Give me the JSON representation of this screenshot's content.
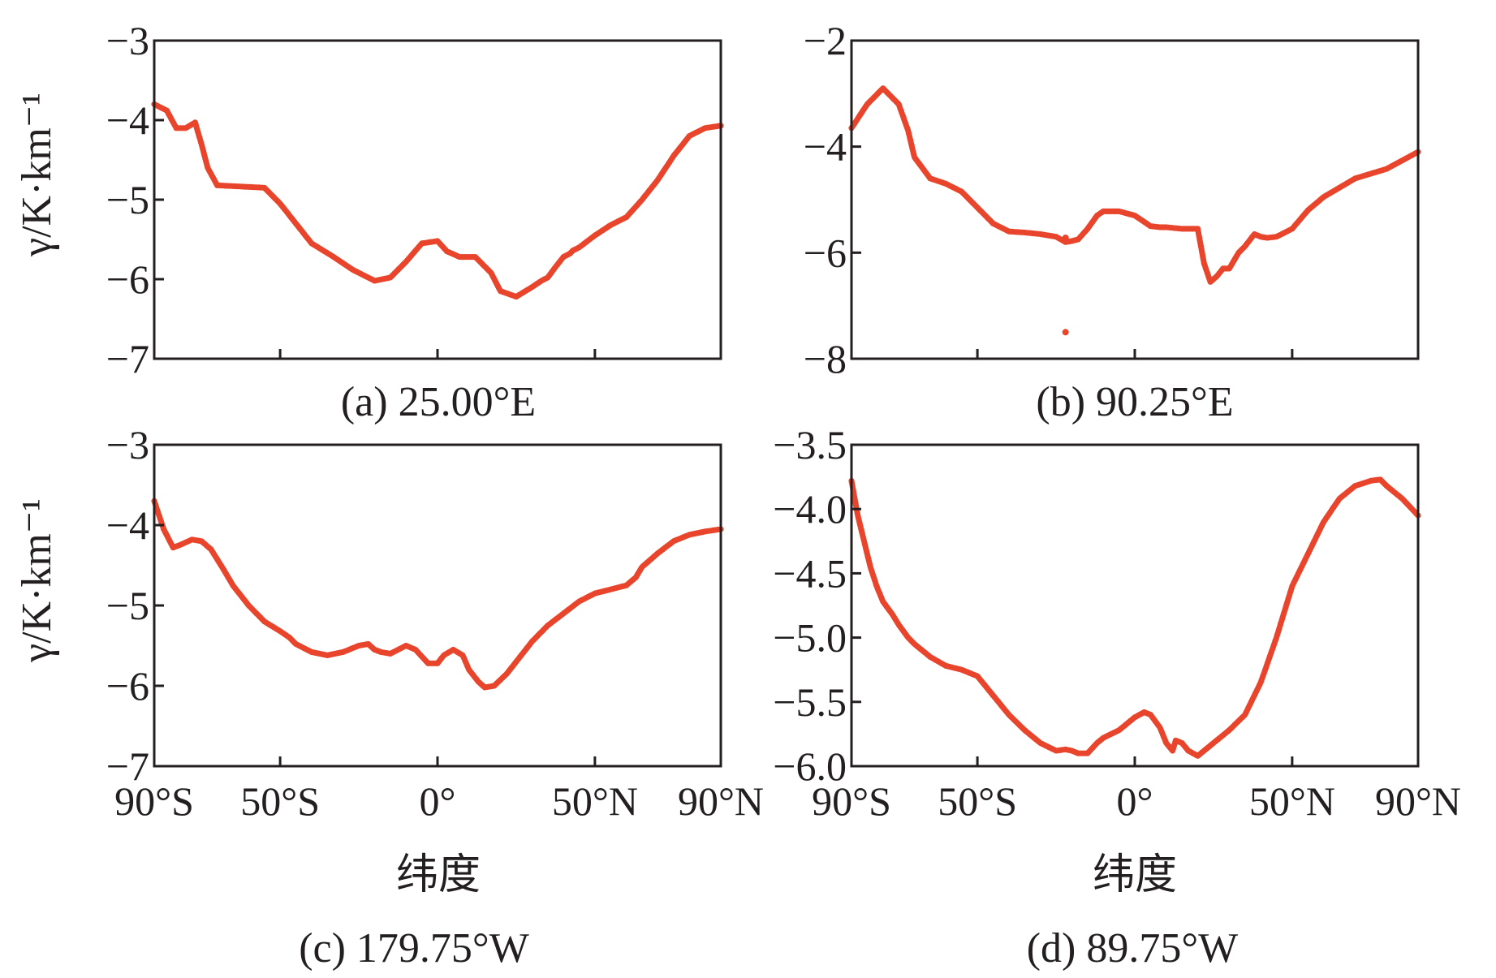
{
  "figure": {
    "ylabel": "γ/K·km⁻¹",
    "xlabel": "纬度",
    "x_tick_labels": [
      "90°S",
      "50°S",
      "0°",
      "50°N",
      "90°N"
    ]
  },
  "colors": {
    "series": "#e8452c",
    "axes": "#231f20"
  },
  "chart_data": [
    {
      "type": "scatter",
      "title": "(a) 25.00°E",
      "xlabel": "纬度",
      "ylabel": "γ/K·km⁻¹",
      "xlim": [
        -90,
        90
      ],
      "ylim": [
        -7,
        -3
      ],
      "y_ticks": [
        -3,
        -4,
        -5,
        -6,
        -7
      ],
      "y_tick_labels": [
        "−3",
        "−4",
        "−5",
        "−6",
        "−7"
      ],
      "x_ticks": [
        -90,
        -50,
        0,
        50,
        90
      ],
      "show_x_tick_labels": false,
      "x": [
        -90,
        -86,
        -83,
        -80,
        -77,
        -75,
        -73,
        -70,
        -65,
        -55,
        -50,
        -45,
        -40,
        -33,
        -27,
        -20,
        -15,
        -10,
        -5,
        0,
        3,
        7,
        12,
        17,
        20,
        25,
        30,
        33,
        35,
        38,
        40,
        42,
        43,
        45,
        50,
        55,
        60,
        65,
        70,
        75,
        80,
        85,
        90
      ],
      "y": [
        -3.8,
        -3.88,
        -4.1,
        -4.1,
        -4.03,
        -4.3,
        -4.6,
        -4.82,
        -4.83,
        -4.85,
        -5.05,
        -5.3,
        -5.55,
        -5.72,
        -5.88,
        -6.02,
        -5.98,
        -5.78,
        -5.55,
        -5.52,
        -5.65,
        -5.72,
        -5.72,
        -5.92,
        -6.15,
        -6.22,
        -6.1,
        -6.02,
        -5.98,
        -5.82,
        -5.72,
        -5.68,
        -5.64,
        -5.6,
        -5.45,
        -5.32,
        -5.22,
        -5.0,
        -4.75,
        -4.45,
        -4.2,
        -4.1,
        -4.07
      ]
    },
    {
      "type": "scatter",
      "title": "(b) 90.25°E",
      "xlabel": "纬度",
      "ylabel": "γ/K·km⁻¹",
      "xlim": [
        -90,
        90
      ],
      "ylim": [
        -8,
        -2
      ],
      "y_ticks": [
        -2,
        -4,
        -6,
        -8
      ],
      "y_tick_labels": [
        "−2",
        "−4",
        "−6",
        "−8"
      ],
      "x_ticks": [
        -90,
        -50,
        0,
        50,
        90
      ],
      "show_x_tick_labels": false,
      "x": [
        -90,
        -85,
        -80,
        -75,
        -72,
        -70,
        -65,
        -60,
        -55,
        -50,
        -45,
        -40,
        -35,
        -30,
        -25,
        -22,
        -20,
        -18,
        -15,
        -12,
        -10,
        -7,
        -5,
        0,
        5,
        8,
        10,
        15,
        20,
        22,
        24,
        26,
        28,
        30,
        33,
        35,
        38,
        40,
        42,
        45,
        50,
        55,
        60,
        70,
        80,
        90
      ],
      "y": [
        -3.65,
        -3.2,
        -2.9,
        -3.2,
        -3.7,
        -4.2,
        -4.6,
        -4.7,
        -4.85,
        -5.15,
        -5.45,
        -5.6,
        -5.62,
        -5.65,
        -5.7,
        -5.8,
        -5.78,
        -5.75,
        -5.55,
        -5.3,
        -5.22,
        -5.22,
        -5.22,
        -5.3,
        -5.5,
        -5.52,
        -5.52,
        -5.55,
        -5.55,
        -6.2,
        -6.55,
        -6.45,
        -6.3,
        -6.3,
        -6.0,
        -5.88,
        -5.65,
        -5.7,
        -5.72,
        -5.7,
        -5.55,
        -5.2,
        -4.95,
        -4.6,
        -4.42,
        -4.1
      ],
      "outlier_points": [
        {
          "x": -22,
          "y": -7.5
        },
        {
          "x": -22,
          "y": -5.72
        }
      ]
    },
    {
      "type": "scatter",
      "title": "(c) 179.75°W",
      "xlabel": "纬度",
      "ylabel": "γ/K·km⁻¹",
      "xlim": [
        -90,
        90
      ],
      "ylim": [
        -7,
        -3
      ],
      "y_ticks": [
        -3,
        -4,
        -5,
        -6,
        -7
      ],
      "y_tick_labels": [
        "−3",
        "−4",
        "−5",
        "−6",
        "−7"
      ],
      "x_ticks": [
        -90,
        -50,
        0,
        50,
        90
      ],
      "show_x_tick_labels": true,
      "x": [
        -90,
        -87,
        -84,
        -82,
        -78,
        -75,
        -72,
        -68,
        -65,
        -60,
        -55,
        -50,
        -47,
        -45,
        -43,
        -40,
        -35,
        -30,
        -25,
        -22,
        -20,
        -18,
        -15,
        -10,
        -7,
        -3,
        0,
        2,
        5,
        8,
        10,
        13,
        15,
        18,
        22,
        25,
        30,
        35,
        40,
        45,
        50,
        55,
        60,
        63,
        65,
        70,
        75,
        80,
        85,
        90
      ],
      "y": [
        -3.7,
        -4.05,
        -4.28,
        -4.25,
        -4.18,
        -4.2,
        -4.3,
        -4.55,
        -4.75,
        -5.0,
        -5.2,
        -5.32,
        -5.4,
        -5.48,
        -5.52,
        -5.58,
        -5.62,
        -5.58,
        -5.5,
        -5.48,
        -5.55,
        -5.58,
        -5.6,
        -5.5,
        -5.55,
        -5.72,
        -5.72,
        -5.62,
        -5.55,
        -5.62,
        -5.8,
        -5.95,
        -6.02,
        -6.0,
        -5.85,
        -5.7,
        -5.45,
        -5.25,
        -5.1,
        -4.95,
        -4.85,
        -4.8,
        -4.75,
        -4.65,
        -4.52,
        -4.35,
        -4.2,
        -4.12,
        -4.08,
        -4.05
      ]
    },
    {
      "type": "scatter",
      "title": "(d) 89.75°W",
      "xlabel": "纬度",
      "ylabel": "γ/K·km⁻¹",
      "xlim": [
        -90,
        90
      ],
      "ylim": [
        -6.0,
        -3.5
      ],
      "y_ticks": [
        -3.5,
        -4.0,
        -4.5,
        -5.0,
        -5.5,
        -6.0
      ],
      "y_tick_labels": [
        "−3.5",
        "−4.0",
        "−4.5",
        "−5.0",
        "−5.5",
        "−6.0"
      ],
      "x_ticks": [
        -90,
        -50,
        0,
        50,
        90
      ],
      "show_x_tick_labels": true,
      "x": [
        -90,
        -88,
        -86,
        -84,
        -82,
        -80,
        -77,
        -75,
        -72,
        -70,
        -65,
        -60,
        -55,
        -50,
        -45,
        -40,
        -35,
        -30,
        -25,
        -22,
        -20,
        -18,
        -15,
        -12,
        -10,
        -5,
        0,
        3,
        5,
        8,
        10,
        12,
        13,
        15,
        17,
        20,
        22,
        25,
        30,
        35,
        40,
        45,
        50,
        55,
        60,
        65,
        70,
        75,
        78,
        80,
        85,
        90
      ],
      "y": [
        -3.78,
        -4.05,
        -4.25,
        -4.45,
        -4.6,
        -4.72,
        -4.82,
        -4.9,
        -5.0,
        -5.05,
        -5.15,
        -5.22,
        -5.25,
        -5.3,
        -5.45,
        -5.6,
        -5.72,
        -5.82,
        -5.88,
        -5.87,
        -5.88,
        -5.9,
        -5.9,
        -5.82,
        -5.78,
        -5.72,
        -5.62,
        -5.58,
        -5.6,
        -5.7,
        -5.82,
        -5.88,
        -5.8,
        -5.82,
        -5.88,
        -5.92,
        -5.88,
        -5.82,
        -5.72,
        -5.6,
        -5.35,
        -5.0,
        -4.6,
        -4.35,
        -4.1,
        -3.92,
        -3.82,
        -3.78,
        -3.77,
        -3.82,
        -3.92,
        -4.05
      ]
    }
  ]
}
